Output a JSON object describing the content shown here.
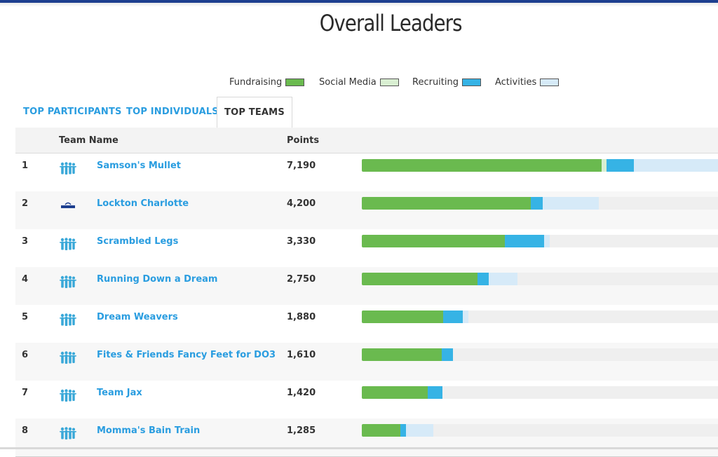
{
  "page": {
    "title": "Overall Leaders"
  },
  "legend": [
    {
      "label": "Fundraising",
      "color": "#6aba4f"
    },
    {
      "label": "Social Media",
      "color": "#d9efd2"
    },
    {
      "label": "Recruiting",
      "color": "#36b3e5"
    },
    {
      "label": "Activities",
      "color": "#d6eaf8"
    }
  ],
  "tabs": [
    {
      "label": "TOP PARTICIPANTS",
      "active": false
    },
    {
      "label": "TOP INDIVIDUALS",
      "active": false
    },
    {
      "label": "TOP TEAMS",
      "active": true
    }
  ],
  "table": {
    "columns": {
      "team": "Team Name",
      "points": "Points"
    },
    "rows": [
      {
        "rank": "1",
        "name": "Samson's Mullet",
        "points": "7,190",
        "icon": "team-people-icon",
        "breakdown": {
          "fundraising": 0.673,
          "social": 0.014,
          "recruiting": 0.077,
          "activities": 0.236
        }
      },
      {
        "rank": "2",
        "name": "Lockton Charlotte",
        "points": "4,200",
        "icon": "lockton-logo-icon",
        "breakdown": {
          "fundraising": 0.475,
          "social": 0.0,
          "recruiting": 0.033,
          "activities": 0.157
        }
      },
      {
        "rank": "3",
        "name": "Scrambled Legs",
        "points": "3,330",
        "icon": "team-people-icon",
        "breakdown": {
          "fundraising": 0.402,
          "social": 0.0,
          "recruiting": 0.11,
          "activities": 0.016
        }
      },
      {
        "rank": "4",
        "name": "Running Down a Dream",
        "points": "2,750",
        "icon": "team-people-icon",
        "breakdown": {
          "fundraising": 0.325,
          "social": 0.0,
          "recruiting": 0.031,
          "activities": 0.081
        }
      },
      {
        "rank": "5",
        "name": "Dream Weavers",
        "points": "1,880",
        "icon": "team-people-icon",
        "breakdown": {
          "fundraising": 0.228,
          "social": 0.0,
          "recruiting": 0.055,
          "activities": 0.016
        }
      },
      {
        "rank": "6",
        "name": "Fites & Friends Fancy Feet for DO3",
        "points": "1,610",
        "icon": "team-people-icon",
        "breakdown": {
          "fundraising": 0.224,
          "social": 0.0,
          "recruiting": 0.031,
          "activities": 0.0
        }
      },
      {
        "rank": "7",
        "name": "Team Jax",
        "points": "1,420",
        "icon": "team-people-icon",
        "breakdown": {
          "fundraising": 0.185,
          "social": 0.0,
          "recruiting": 0.041,
          "activities": 0.0
        }
      },
      {
        "rank": "8",
        "name": "Momma's Bain Train",
        "points": "1,285",
        "icon": "team-people-icon",
        "breakdown": {
          "fundraising": 0.108,
          "social": 0.0,
          "recruiting": 0.016,
          "activities": 0.077
        }
      }
    ]
  }
}
